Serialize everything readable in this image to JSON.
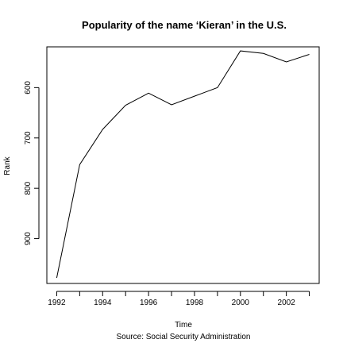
{
  "chart_data": {
    "type": "line",
    "title": "Popularity of the name ‘Kieran’ in the U.S.",
    "xlabel": "Time",
    "ylabel": "Rank",
    "caption": "Source: Social Security Administration",
    "x": [
      1992,
      1993,
      1994,
      1995,
      1996,
      1997,
      1998,
      1999,
      2000,
      2001,
      2002,
      2003
    ],
    "series": [
      {
        "values": [
          978,
          753,
          683,
          635,
          611,
          634,
          617,
          600,
          527,
          532,
          549,
          534
        ]
      }
    ],
    "xlim": [
      1991.57,
      2003.43
    ],
    "ylim": [
      989,
      519
    ],
    "y_inverted": true,
    "xticks": [
      1992,
      1993,
      1994,
      1995,
      1996,
      1997,
      1998,
      1999,
      2000,
      2001,
      2002,
      2003
    ],
    "xtick_labels": [
      "1992",
      "",
      "1994",
      "",
      "1996",
      "",
      "1998",
      "",
      "2000",
      "",
      "2002",
      ""
    ],
    "yticks": [
      600,
      700,
      800,
      900
    ],
    "ytick_labels": [
      "600",
      "700",
      "800",
      "900"
    ],
    "grid": false,
    "line_color": "#000000"
  }
}
